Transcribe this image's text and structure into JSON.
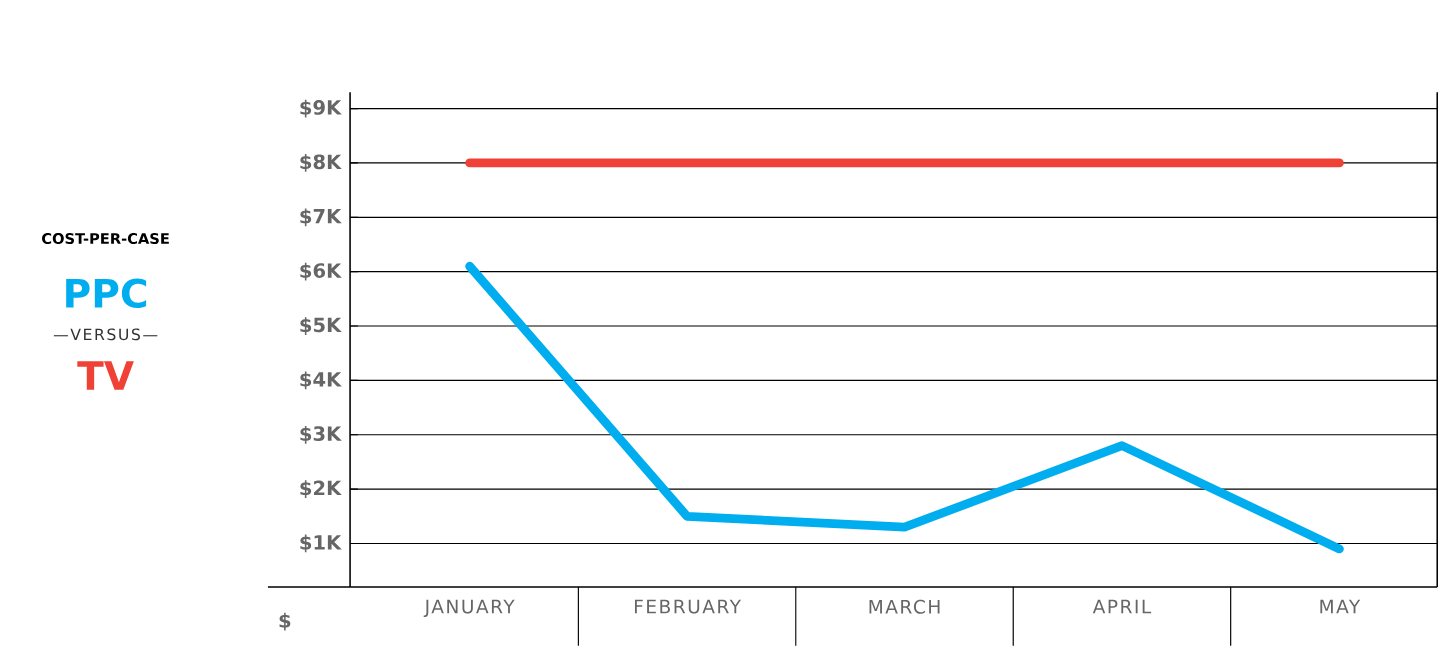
{
  "chart_data": {
    "type": "line",
    "title": "COST-PER-CASE",
    "ylabel": "$",
    "annotations": [
      "—VERSUS—"
    ],
    "categories": [
      "JANUARY",
      "FEBRUARY",
      "MARCH",
      "APRIL",
      "MAY"
    ],
    "series": [
      {
        "name": "PPC",
        "color": "#00aeef",
        "values": [
          6100,
          1500,
          1300,
          2800,
          900
        ]
      },
      {
        "name": "TV",
        "color": "#ef4136",
        "values": [
          8000,
          8000,
          8000,
          8000,
          8000
        ]
      }
    ],
    "ylim": [
      200,
      9300
    ],
    "yticks": [
      {
        "value": 1000,
        "label": "$1K"
      },
      {
        "value": 2000,
        "label": "$2K"
      },
      {
        "value": 3000,
        "label": "$3K"
      },
      {
        "value": 4000,
        "label": "$4K"
      },
      {
        "value": 5000,
        "label": "$5K"
      },
      {
        "value": 6000,
        "label": "$6K"
      },
      {
        "value": 7000,
        "label": "$7K"
      },
      {
        "value": 8000,
        "label": "$8K"
      },
      {
        "value": 9000,
        "label": "$9K"
      }
    ],
    "grid": "y",
    "legend": "left",
    "marker": "none",
    "line_style": "solid"
  }
}
